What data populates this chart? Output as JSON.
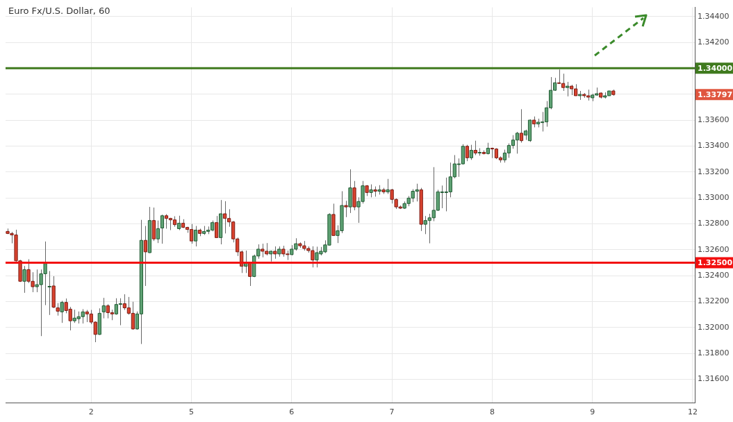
{
  "chart_data": {
    "type": "candlestick",
    "title": "Euro Fx/U.S. Dollar, 60",
    "categories": [
      null,
      null,
      null,
      null,
      null,
      null,
      null,
      null,
      null,
      null,
      null,
      null,
      null,
      null,
      null,
      null,
      null,
      null,
      null,
      null,
      "2",
      null,
      null,
      null,
      null,
      null,
      null,
      null,
      null,
      null,
      null,
      null,
      null,
      null,
      null,
      null,
      null,
      null,
      null,
      null,
      null,
      null,
      null,
      null,
      "5",
      null,
      null,
      null,
      null,
      null,
      null,
      null,
      null,
      null,
      null,
      null,
      null,
      null,
      null,
      null,
      null,
      null,
      null,
      null,
      null,
      null,
      null,
      null,
      "6",
      null,
      null,
      null,
      null,
      null,
      null,
      null,
      null,
      null,
      null,
      null,
      null,
      null,
      null,
      null,
      null,
      null,
      null,
      null,
      null,
      null,
      null,
      null,
      "7",
      null,
      null,
      null,
      null,
      null,
      null,
      null,
      null,
      null,
      null,
      null,
      null,
      null,
      null,
      null,
      null,
      null,
      null,
      null,
      null,
      null,
      null,
      null,
      "8",
      null,
      null,
      null,
      null,
      null,
      null,
      null,
      null,
      null,
      null,
      null,
      null,
      null,
      null,
      null,
      null,
      null,
      null,
      null,
      null,
      null,
      null,
      null,
      "9",
      null,
      null,
      null,
      null,
      null,
      null,
      null,
      null,
      null,
      null,
      null,
      null,
      null,
      null,
      null,
      null,
      null,
      null,
      null,
      null,
      null,
      null,
      null,
      "12"
    ],
    "ohlc": [
      [
        1.32741,
        1.32763,
        1.3272,
        1.32725
      ],
      [
        1.32725,
        1.32737,
        1.32649,
        1.32714
      ],
      [
        1.32714,
        1.32754,
        1.32509,
        1.32514
      ],
      [
        1.32514,
        1.32521,
        1.32351,
        1.32356
      ],
      [
        1.32356,
        1.32474,
        1.32267,
        1.32446
      ],
      [
        1.32446,
        1.32526,
        1.32342,
        1.32356
      ],
      [
        1.32356,
        1.32426,
        1.32272,
        1.32314
      ],
      [
        1.32314,
        1.32447,
        1.32272,
        1.3233
      ],
      [
        1.3233,
        1.32447,
        1.31933,
        1.32414
      ],
      [
        1.32414,
        1.32663,
        1.32172,
        1.32493
      ],
      [
        1.32317,
        1.32435,
        1.32096,
        1.32317
      ],
      [
        1.3232,
        1.32395,
        1.32149,
        1.32156
      ],
      [
        1.32151,
        1.32188,
        1.32091,
        1.32125
      ],
      [
        1.3212,
        1.32205,
        1.32035,
        1.32193
      ],
      [
        1.32193,
        1.32223,
        1.32109,
        1.3213
      ],
      [
        1.32141,
        1.32158,
        1.31977,
        1.32051
      ],
      [
        1.32051,
        1.32137,
        1.32035,
        1.32072
      ],
      [
        1.32067,
        1.32123,
        1.3203,
        1.32083
      ],
      [
        1.32083,
        1.32141,
        1.3203,
        1.3212
      ],
      [
        1.3212,
        1.32135,
        1.32041,
        1.32104
      ],
      [
        1.32104,
        1.32135,
        1.32025,
        1.32041
      ],
      [
        1.32041,
        1.32047,
        1.31886,
        1.31946
      ],
      [
        1.31946,
        1.32147,
        1.31942,
        1.32109
      ],
      [
        1.3212,
        1.32228,
        1.3207,
        1.32167
      ],
      [
        1.32167,
        1.32179,
        1.3207,
        1.32114
      ],
      [
        1.32114,
        1.32137,
        1.32056,
        1.32104
      ],
      [
        1.32104,
        1.32225,
        1.32098,
        1.32177
      ],
      [
        1.32183,
        1.32225,
        1.32017,
        1.32183
      ],
      [
        1.32183,
        1.32256,
        1.32135,
        1.32151
      ],
      [
        1.32151,
        1.32235,
        1.32098,
        1.32109
      ],
      [
        1.32109,
        1.32198,
        1.31983,
        1.31988
      ],
      [
        1.31988,
        1.32123,
        1.31983,
        1.32104
      ],
      [
        1.32104,
        1.3283,
        1.31872,
        1.32672
      ],
      [
        1.32672,
        1.32783,
        1.3232,
        1.32583
      ],
      [
        1.32577,
        1.3293,
        1.32574,
        1.32825
      ],
      [
        1.32825,
        1.32925,
        1.32667,
        1.32683
      ],
      [
        1.32683,
        1.32825,
        1.32651,
        1.32762
      ],
      [
        1.32767,
        1.3287,
        1.32646,
        1.32862
      ],
      [
        1.32862,
        1.32874,
        1.32762,
        1.32841
      ],
      [
        1.32841,
        1.32846,
        1.32751,
        1.3283
      ],
      [
        1.3283,
        1.32858,
        1.32777,
        1.32793
      ],
      [
        1.32762,
        1.32862,
        1.32751,
        1.32804
      ],
      [
        1.32804,
        1.32835,
        1.32767,
        1.32772
      ],
      [
        1.32772,
        1.32777,
        1.3273,
        1.32756
      ],
      [
        1.32756,
        1.32798,
        1.32646,
        1.32667
      ],
      [
        1.32667,
        1.32783,
        1.32625,
        1.32751
      ],
      [
        1.32751,
        1.32762,
        1.32704,
        1.32725
      ],
      [
        1.32725,
        1.32783,
        1.32714,
        1.32741
      ],
      [
        1.32741,
        1.32779,
        1.3272,
        1.32751
      ],
      [
        1.32751,
        1.32825,
        1.32741,
        1.32809
      ],
      [
        1.32809,
        1.3286,
        1.32693,
        1.32693
      ],
      [
        1.32693,
        1.32983,
        1.32641,
        1.32877
      ],
      [
        1.32877,
        1.32974,
        1.32725,
        1.32841
      ],
      [
        1.32841,
        1.32912,
        1.32777,
        1.32814
      ],
      [
        1.32814,
        1.32821,
        1.32656,
        1.32683
      ],
      [
        1.32683,
        1.32693,
        1.32551,
        1.32583
      ],
      [
        1.32583,
        1.32593,
        1.3242,
        1.32472
      ],
      [
        1.32472,
        1.32593,
        1.3242,
        1.32498
      ],
      [
        1.32498,
        1.32504,
        1.3232,
        1.32393
      ],
      [
        1.32393,
        1.32562,
        1.32388,
        1.32551
      ],
      [
        1.32551,
        1.32641,
        1.3253,
        1.32604
      ],
      [
        1.32604,
        1.32646,
        1.32541,
        1.32588
      ],
      [
        1.32588,
        1.32651,
        1.32556,
        1.32567
      ],
      [
        1.32567,
        1.32593,
        1.32509,
        1.32588
      ],
      [
        1.32588,
        1.32625,
        1.3253,
        1.32567
      ],
      [
        1.32567,
        1.32625,
        1.32546,
        1.32604
      ],
      [
        1.32604,
        1.3263,
        1.32546,
        1.32567
      ],
      [
        1.32567,
        1.32593,
        1.3252,
        1.32562
      ],
      [
        1.32562,
        1.32635,
        1.32556,
        1.32604
      ],
      [
        1.32604,
        1.32688,
        1.32593,
        1.32646
      ],
      [
        1.32646,
        1.32656,
        1.32614,
        1.3263
      ],
      [
        1.3263,
        1.32667,
        1.32593,
        1.32609
      ],
      [
        1.32609,
        1.32625,
        1.32577,
        1.32593
      ],
      [
        1.32593,
        1.32626,
        1.32463,
        1.3252
      ],
      [
        1.3252,
        1.32623,
        1.32463,
        1.32577
      ],
      [
        1.32567,
        1.32621,
        1.32556,
        1.32588
      ],
      [
        1.32583,
        1.32672,
        1.32574,
        1.32637
      ],
      [
        1.32635,
        1.32881,
        1.32632,
        1.32872
      ],
      [
        1.32872,
        1.32955,
        1.32709,
        1.32709
      ],
      [
        1.32709,
        1.32788,
        1.32651,
        1.32746
      ],
      [
        1.32746,
        1.33051,
        1.32728,
        1.32941
      ],
      [
        1.32941,
        1.32977,
        1.32851,
        1.3293
      ],
      [
        1.3293,
        1.3322,
        1.32883,
        1.33077
      ],
      [
        1.33077,
        1.3313,
        1.32904,
        1.3293
      ],
      [
        1.3293,
        1.33004,
        1.32807,
        1.32972
      ],
      [
        1.32972,
        1.3313,
        1.32956,
        1.33093
      ],
      [
        1.33093,
        1.33098,
        1.33014,
        1.33041
      ],
      [
        1.33041,
        1.33104,
        1.33004,
        1.33062
      ],
      [
        1.33062,
        1.33088,
        1.33009,
        1.33051
      ],
      [
        1.33051,
        1.33098,
        1.33025,
        1.33062
      ],
      [
        1.33062,
        1.33077,
        1.3303,
        1.33046
      ],
      [
        1.33046,
        1.33146,
        1.3303,
        1.33062
      ],
      [
        1.33062,
        1.33069,
        1.32956,
        1.32988
      ],
      [
        1.32988,
        1.32995,
        1.32914,
        1.3293
      ],
      [
        1.3293,
        1.32941,
        1.32914,
        1.3292
      ],
      [
        1.3292,
        1.32972,
        1.32914,
        1.32956
      ],
      [
        1.32956,
        1.33014,
        1.32935,
        1.32998
      ],
      [
        1.32998,
        1.33067,
        1.32967,
        1.33051
      ],
      [
        1.33051,
        1.33109,
        1.32972,
        1.33062
      ],
      [
        1.33062,
        1.33077,
        1.32744,
        1.32796
      ],
      [
        1.32796,
        1.3286,
        1.3272,
        1.32825
      ],
      [
        1.32825,
        1.32877,
        1.32649,
        1.32846
      ],
      [
        1.32846,
        1.33237,
        1.3282,
        1.32904
      ],
      [
        1.32904,
        1.33062,
        1.32899,
        1.33046
      ],
      [
        1.33046,
        1.33095,
        1.3292,
        1.33046
      ],
      [
        1.33046,
        1.33156,
        1.32896,
        1.33046
      ],
      [
        1.33046,
        1.33272,
        1.33004,
        1.33162
      ],
      [
        1.33162,
        1.3333,
        1.33151,
        1.33262
      ],
      [
        1.33262,
        1.33304,
        1.33162,
        1.33262
      ],
      [
        1.33262,
        1.33414,
        1.33258,
        1.33398
      ],
      [
        1.33398,
        1.33409,
        1.33283,
        1.33309
      ],
      [
        1.33309,
        1.33409,
        1.33293,
        1.33367
      ],
      [
        1.33367,
        1.33441,
        1.3333,
        1.33346
      ],
      [
        1.33346,
        1.33383,
        1.33325,
        1.33351
      ],
      [
        1.33351,
        1.33367,
        1.33335,
        1.33341
      ],
      [
        1.33341,
        1.33425,
        1.33335,
        1.33383
      ],
      [
        1.33383,
        1.33387,
        1.33307,
        1.33377
      ],
      [
        1.33377,
        1.33383,
        1.33299,
        1.33309
      ],
      [
        1.33309,
        1.3332,
        1.33272,
        1.33293
      ],
      [
        1.33293,
        1.33372,
        1.33272,
        1.33346
      ],
      [
        1.33346,
        1.3342,
        1.33309,
        1.33404
      ],
      [
        1.33404,
        1.33484,
        1.33379,
        1.33446
      ],
      [
        1.33446,
        1.33509,
        1.33341,
        1.33499
      ],
      [
        1.33499,
        1.33684,
        1.33426,
        1.33441
      ],
      [
        1.33484,
        1.33526,
        1.33447,
        1.33516
      ],
      [
        1.33441,
        1.33605,
        1.33432,
        1.336
      ],
      [
        1.336,
        1.33628,
        1.33544,
        1.3357
      ],
      [
        1.3357,
        1.33611,
        1.33544,
        1.33584
      ],
      [
        1.33586,
        1.33663,
        1.33512,
        1.33586
      ],
      [
        1.33586,
        1.33747,
        1.33549,
        1.33695
      ],
      [
        1.33695,
        1.33932,
        1.33684,
        1.3383
      ],
      [
        1.3383,
        1.33926,
        1.33825,
        1.33888
      ],
      [
        1.33888,
        1.3399,
        1.33883,
        1.33883
      ],
      [
        1.33883,
        1.33958,
        1.33825,
        1.33851
      ],
      [
        1.33851,
        1.33895,
        1.33783,
        1.33862
      ],
      [
        1.33862,
        1.33872,
        1.33793,
        1.33841
      ],
      [
        1.33841,
        1.33877,
        1.33788,
        1.33788
      ],
      [
        1.33788,
        1.33825,
        1.33756,
        1.33798
      ],
      [
        1.33798,
        1.33809,
        1.33772,
        1.33788
      ],
      [
        1.33788,
        1.33835,
        1.33751,
        1.33777
      ],
      [
        1.33772,
        1.33804,
        1.33746,
        1.33793
      ],
      [
        1.33793,
        1.33851,
        1.33788,
        1.33804
      ],
      [
        1.33809,
        1.33812,
        1.33767,
        1.33777
      ],
      [
        1.33777,
        1.33814,
        1.33767,
        1.33788
      ],
      [
        1.33788,
        1.33825,
        1.33788,
        1.33825
      ],
      [
        1.33825,
        1.33835,
        1.33788,
        1.33797
      ],
      null,
      null,
      null,
      null,
      null,
      null,
      null,
      null,
      null,
      null,
      null,
      null,
      null,
      null,
      null,
      null,
      null,
      null,
      null
    ],
    "ylim": [
      1.3142,
      1.3447
    ],
    "yticks": [
      {
        "value": 1.316,
        "label": "1.31600"
      },
      {
        "value": 1.318,
        "label": "1.31800"
      },
      {
        "value": 1.32,
        "label": "1.32000"
      },
      {
        "value": 1.322,
        "label": "1.32200"
      },
      {
        "value": 1.324,
        "label": "1.32400"
      },
      {
        "value": 1.326,
        "label": "1.32600"
      },
      {
        "value": 1.328,
        "label": "1.32800"
      },
      {
        "value": 1.33,
        "label": "1.33000"
      },
      {
        "value": 1.332,
        "label": "1.33200"
      },
      {
        "value": 1.334,
        "label": "1.33400"
      },
      {
        "value": 1.336,
        "label": "1.33600"
      },
      {
        "value": 1.338,
        "label": null
      },
      {
        "value": 1.34,
        "label": null
      },
      {
        "value": 1.342,
        "label": "1.34200"
      },
      {
        "value": 1.344,
        "label": "1.34400"
      }
    ],
    "ref_lines": [
      {
        "axis": "y",
        "value": 1.34,
        "label": "1.34000",
        "color": "#3f7a1e"
      },
      {
        "axis": "y",
        "value": 1.325,
        "label": "1.32500",
        "color": "#f20f0f"
      }
    ],
    "annotations": [
      "1.33797"
    ],
    "grid": true
  }
}
